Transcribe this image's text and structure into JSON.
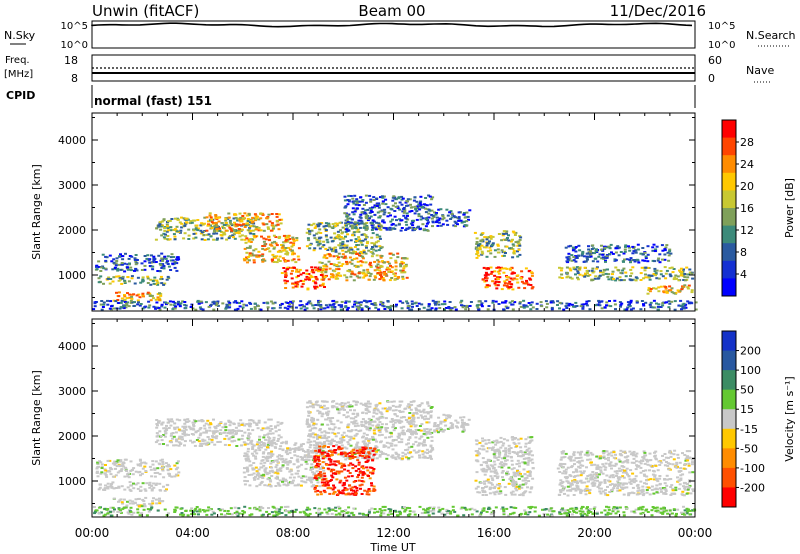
{
  "header": {
    "station": "Unwin (fitACF)",
    "beam": "Beam 00",
    "date": "11/Dec/2016"
  },
  "nsky_panel": {
    "label": "N.Sky",
    "right_label": "N.Search",
    "left_ticks": [
      "10^5",
      "10^0"
    ],
    "right_ticks": [
      "10^5",
      "10^0"
    ]
  },
  "freq_panel": {
    "label_line1": "Freq.",
    "label_line2": "[MHz]",
    "right_label": "Nave",
    "left_ticks": [
      "18",
      "8"
    ],
    "right_ticks": [
      "60",
      "0"
    ]
  },
  "cpid_panel": {
    "label": "CPID",
    "value": "normal (fast) 151"
  },
  "colorbars": {
    "power": {
      "label": "Power [dB]",
      "ticks": [
        "28",
        "24",
        "20",
        "16",
        "12",
        "8",
        "4"
      ],
      "colors": [
        "#ff0000",
        "#ff4500",
        "#ff8c00",
        "#ffc800",
        "#c8c832",
        "#7fa05a",
        "#3c8a7a",
        "#2a5aa0",
        "#1430d2",
        "#0000ff"
      ]
    },
    "velocity": {
      "label": "Velocity [m s⁻¹]",
      "ticks": [
        "200",
        "100",
        "50",
        "15",
        "-15",
        "-50",
        "-100",
        "-200"
      ],
      "colors": [
        "#1432c8",
        "#2858a0",
        "#3c8c64",
        "#64c832",
        "#c8c8c8",
        "#ffc800",
        "#ff8c00",
        "#ff5000",
        "#ff0000"
      ]
    }
  },
  "chart_data": [
    {
      "type": "heatmap",
      "name_panel": "power",
      "ylabel": "Slant Range [km]",
      "xlabel": "",
      "ylim": [
        200,
        4600
      ],
      "yticks": [
        "4000",
        "3000",
        "2000",
        "1000"
      ],
      "xlim": [
        0,
        24
      ],
      "bands": [
        {
          "t0": 0.1,
          "t1": 3.4,
          "r0": 1100,
          "r1": 1500,
          "level": "low"
        },
        {
          "t0": 0.2,
          "t1": 3.0,
          "r0": 800,
          "r1": 1000,
          "level": "mid"
        },
        {
          "t0": 0.8,
          "t1": 2.8,
          "r0": 450,
          "r1": 650,
          "level": "high"
        },
        {
          "t0": 2.5,
          "t1": 6.5,
          "r0": 1800,
          "r1": 2300,
          "level": "mid"
        },
        {
          "t0": 4.5,
          "t1": 7.5,
          "r0": 2000,
          "r1": 2400,
          "level": "high"
        },
        {
          "t0": 6.0,
          "t1": 8.2,
          "r0": 1300,
          "r1": 1900,
          "level": "high"
        },
        {
          "t0": 7.5,
          "t1": 9.2,
          "r0": 700,
          "r1": 1200,
          "level": "peak"
        },
        {
          "t0": 8.5,
          "t1": 11.5,
          "r0": 1500,
          "r1": 2200,
          "level": "mid"
        },
        {
          "t0": 9.0,
          "t1": 12.5,
          "r0": 900,
          "r1": 1500,
          "level": "high"
        },
        {
          "t0": 10.0,
          "t1": 13.5,
          "r0": 2000,
          "r1": 2800,
          "level": "low"
        },
        {
          "t0": 13.5,
          "t1": 15.0,
          "r0": 2100,
          "r1": 2500,
          "level": "low"
        },
        {
          "t0": 15.2,
          "t1": 17.0,
          "r0": 1400,
          "r1": 2000,
          "level": "mid"
        },
        {
          "t0": 15.5,
          "t1": 17.5,
          "r0": 700,
          "r1": 1200,
          "level": "peak"
        },
        {
          "t0": 18.5,
          "t1": 23.9,
          "r0": 900,
          "r1": 1200,
          "level": "mid"
        },
        {
          "t0": 18.8,
          "t1": 23.0,
          "r0": 1300,
          "r1": 1700,
          "level": "low"
        },
        {
          "t0": 22.0,
          "t1": 23.9,
          "r0": 600,
          "r1": 800,
          "level": "high"
        },
        {
          "t0": 0.0,
          "t1": 24.0,
          "r0": 250,
          "r1": 450,
          "level": "low"
        }
      ]
    },
    {
      "type": "heatmap",
      "name_panel": "velocity",
      "ylabel": "Slant Range [km]",
      "xlabel": "Time UT",
      "ylim": [
        200,
        4600
      ],
      "yticks": [
        "4000",
        "3000",
        "2000",
        "1000"
      ],
      "xlim": [
        0,
        24
      ],
      "xticks": [
        "00:00",
        "04:00",
        "08:00",
        "12:00",
        "16:00",
        "20:00",
        "00:00"
      ],
      "bands": [
        {
          "t0": 0.1,
          "t1": 3.4,
          "r0": 1100,
          "r1": 1500,
          "level": "grey"
        },
        {
          "t0": 0.2,
          "t1": 3.0,
          "r0": 800,
          "r1": 1000,
          "level": "grey"
        },
        {
          "t0": 0.8,
          "t1": 2.8,
          "r0": 450,
          "r1": 650,
          "level": "grey"
        },
        {
          "t0": 2.5,
          "t1": 7.5,
          "r0": 1800,
          "r1": 2400,
          "level": "grey"
        },
        {
          "t0": 6.0,
          "t1": 9.2,
          "r0": 900,
          "r1": 1900,
          "level": "grey"
        },
        {
          "t0": 8.5,
          "t1": 13.5,
          "r0": 1500,
          "r1": 2800,
          "level": "grey"
        },
        {
          "t0": 8.8,
          "t1": 11.2,
          "r0": 700,
          "r1": 1800,
          "level": "red"
        },
        {
          "t0": 13.5,
          "t1": 15.0,
          "r0": 2100,
          "r1": 2500,
          "level": "grey"
        },
        {
          "t0": 15.2,
          "t1": 17.5,
          "r0": 700,
          "r1": 2000,
          "level": "grey"
        },
        {
          "t0": 18.5,
          "t1": 23.9,
          "r0": 700,
          "r1": 1700,
          "level": "grey"
        },
        {
          "t0": 0.0,
          "t1": 24.0,
          "r0": 250,
          "r1": 450,
          "level": "green"
        }
      ]
    }
  ]
}
